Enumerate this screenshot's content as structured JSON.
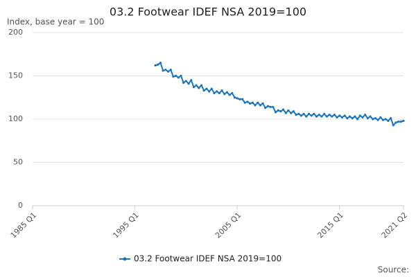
{
  "chart_data": {
    "type": "line",
    "title": "03.2 Footwear IDEF NSA 2019=100",
    "subtitle": "Index, base year = 100",
    "source": "Source:",
    "x": [
      1997,
      1997.25,
      1997.5,
      1997.75,
      1998,
      1998.25,
      1998.5,
      1998.75,
      1999,
      1999.25,
      1999.5,
      1999.75,
      2000,
      2000.25,
      2000.5,
      2000.75,
      2001,
      2001.25,
      2001.5,
      2001.75,
      2002,
      2002.25,
      2002.5,
      2002.75,
      2003,
      2003.25,
      2003.5,
      2003.75,
      2004,
      2004.25,
      2004.5,
      2004.75,
      2005,
      2005.25,
      2005.5,
      2005.75,
      2006,
      2006.25,
      2006.5,
      2006.75,
      2007,
      2007.25,
      2007.5,
      2007.75,
      2008,
      2008.25,
      2008.5,
      2008.75,
      2009,
      2009.25,
      2009.5,
      2009.75,
      2010,
      2010.25,
      2010.5,
      2010.75,
      2011,
      2011.25,
      2011.5,
      2011.75,
      2012,
      2012.25,
      2012.5,
      2012.75,
      2013,
      2013.25,
      2013.5,
      2013.75,
      2014,
      2014.25,
      2014.5,
      2014.75,
      2015,
      2015.25,
      2015.5,
      2015.75,
      2016,
      2016.25,
      2016.5,
      2016.75,
      2017,
      2017.25,
      2017.5,
      2017.75,
      2018,
      2018.25,
      2018.5,
      2018.75,
      2019,
      2019.25,
      2019.5,
      2019.75,
      2020,
      2020.25,
      2020.5,
      2020.75,
      2021,
      2021.25
    ],
    "series": [
      {
        "name": "03.2 Footwear IDEF NSA 2019=100",
        "color": "#1b75bc",
        "values": [
          162,
          163,
          165,
          156,
          157,
          155,
          157,
          149,
          150,
          148,
          150,
          142,
          144,
          141,
          145,
          137,
          139,
          136,
          139,
          133,
          135,
          132,
          135,
          130,
          132,
          130,
          133,
          129,
          131,
          128,
          130,
          125,
          124,
          123,
          123,
          119,
          120,
          118,
          119,
          116,
          119,
          116,
          118,
          113,
          115,
          114,
          114,
          108,
          110,
          109,
          111,
          107,
          110,
          107,
          109,
          105,
          106,
          104,
          106,
          103,
          106,
          104,
          106,
          103,
          105,
          103,
          106,
          103,
          105,
          103,
          105,
          102,
          104,
          102,
          104,
          101,
          103,
          101,
          103,
          100,
          104,
          102,
          105,
          101,
          103,
          100,
          101,
          99,
          102,
          99,
          100,
          98,
          101,
          93,
          96,
          97,
          97,
          98
        ]
      }
    ],
    "xlim": [
      1985,
      2021.25
    ],
    "xticks": [
      {
        "value": 1985,
        "label": "1985 Q1"
      },
      {
        "value": 1995,
        "label": "1995 Q1"
      },
      {
        "value": 2005,
        "label": "2005 Q1"
      },
      {
        "value": 2015,
        "label": "2015 Q1"
      },
      {
        "value": 2021.25,
        "label": "2021 Q2"
      }
    ],
    "ylim": [
      0,
      200
    ],
    "yticks": [
      0,
      50,
      100,
      150,
      200
    ],
    "grid": true
  }
}
